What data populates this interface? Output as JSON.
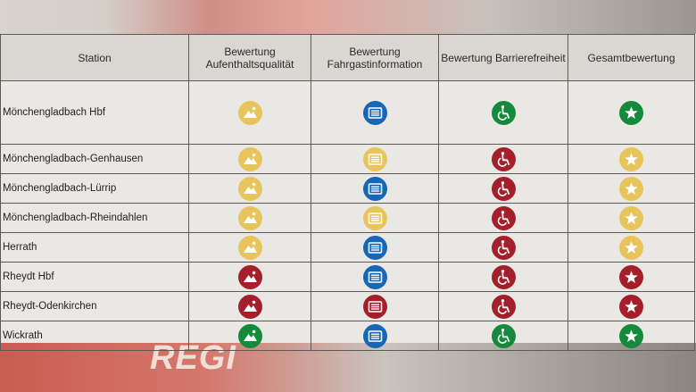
{
  "table": {
    "headers": {
      "station": "Station",
      "aufenthalt": "Bewertung Aufenthaltsqualität",
      "fahrgast": "Bewertung Fahrgastinformation",
      "barriere": "Bewertung Barrierefreiheit",
      "gesamt": "Gesamtbewertung"
    },
    "rows": [
      {
        "station": "Mönchengladbach Hbf",
        "aufenthalt": "yellow",
        "fahrgast": "blue",
        "barriere": "green",
        "gesamt": "green"
      },
      {
        "station": "Mönchengladbach-Genhausen",
        "aufenthalt": "yellow",
        "fahrgast": "yellow",
        "barriere": "red",
        "gesamt": "yellow"
      },
      {
        "station": "Mönchengladbach-Lürrip",
        "aufenthalt": "yellow",
        "fahrgast": "blue",
        "barriere": "red",
        "gesamt": "yellow"
      },
      {
        "station": "Mönchengladbach-Rheindahlen",
        "aufenthalt": "yellow",
        "fahrgast": "yellow",
        "barriere": "red",
        "gesamt": "yellow"
      },
      {
        "station": "Herrath",
        "aufenthalt": "yellow",
        "fahrgast": "blue",
        "barriere": "red",
        "gesamt": "yellow"
      },
      {
        "station": "Rheydt Hbf",
        "aufenthalt": "red",
        "fahrgast": "blue",
        "barriere": "red",
        "gesamt": "red"
      },
      {
        "station": "Rheydt-Odenkirchen",
        "aufenthalt": "red",
        "fahrgast": "red",
        "barriere": "red",
        "gesamt": "red"
      },
      {
        "station": "Wickrath",
        "aufenthalt": "green",
        "fahrgast": "blue",
        "barriere": "green",
        "gesamt": "green"
      }
    ]
  },
  "icons": {
    "aufenthalt": "landscape-icon",
    "fahrgast": "info-board-icon",
    "barriere": "wheelchair-icon",
    "gesamt": "star-icon"
  },
  "colors": {
    "yellow": "#e7c55c",
    "red": "#a51f2b",
    "green": "#168a3c",
    "blue": "#1767b7"
  },
  "background_text": "REGIO"
}
